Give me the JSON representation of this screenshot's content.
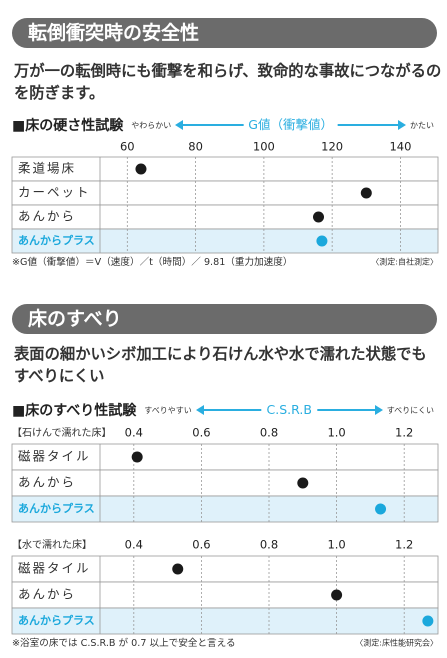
{
  "sections": [
    {
      "heading": "転倒衝突時の安全性",
      "description": "万が一の転倒時にも衝撃を和らげ、致命的な事故につながるのを防ぎます。",
      "test_title": "■床の硬さ性試験",
      "axis_left": "やわらかい",
      "axis_name": "G値（衝撃値）",
      "axis_right": "かたい",
      "charts": [
        {
          "type": "dot",
          "categories": [
            "柔道場床",
            "カーペット",
            "あんから",
            "あんからプラス"
          ],
          "values": [
            64,
            130,
            116,
            117
          ],
          "colors": [
            "#1a1a1a",
            "#1a1a1a",
            "#1a1a1a",
            "#1ba8dc"
          ],
          "row_colors": [
            "#ffffff",
            "#ffffff",
            "#ffffff",
            "#dff1fa"
          ],
          "label_colors": [
            "#333333",
            "#333333",
            "#333333",
            "#1ba8dc"
          ],
          "xlim": [
            52,
            151
          ],
          "xticks": [
            60,
            80,
            100,
            120,
            140
          ],
          "grid": true
        }
      ],
      "footnote": "※G値（衝撃値）＝V（速度）／t（時間）／ 9.81（重力加速度）",
      "source": "〈測定:自社測定〉"
    },
    {
      "heading": "床のすべり",
      "description": "表面の細かいシボ加工により石けん水や水で濡れた状態でもすべりにくい",
      "test_title": "■床のすべり性試験",
      "axis_left": "すべりやすい",
      "axis_name": "C.S.R.B",
      "axis_right": "すべりにくい",
      "charts": [
        {
          "type": "dot",
          "condition": "【石けんで濡れた床】",
          "categories": [
            "磁器タイル",
            "あんから",
            "あんからプラス"
          ],
          "values": [
            0.41,
            0.9,
            1.13
          ],
          "colors": [
            "#1a1a1a",
            "#1a1a1a",
            "#1ba8dc"
          ],
          "row_colors": [
            "#ffffff",
            "#ffffff",
            "#dff1fa"
          ],
          "label_colors": [
            "#333333",
            "#333333",
            "#1ba8dc"
          ],
          "xlim": [
            0.3,
            1.3
          ],
          "xticks": [
            0.4,
            0.6,
            0.8,
            {
              "value": 1,
              "label": "1.0"
            },
            1.2
          ],
          "grid": true
        },
        {
          "type": "dot",
          "condition": "【水で濡れた床】",
          "categories": [
            "磁器タイル",
            "あんから",
            "あんからプラス"
          ],
          "values": [
            0.53,
            1.0,
            1.27
          ],
          "colors": [
            "#1a1a1a",
            "#1a1a1a",
            "#1ba8dc"
          ],
          "row_colors": [
            "#ffffff",
            "#ffffff",
            "#dff1fa"
          ],
          "label_colors": [
            "#333333",
            "#333333",
            "#1ba8dc"
          ],
          "xlim": [
            0.3,
            1.3
          ],
          "xticks": [
            0.4,
            0.6,
            0.8,
            {
              "value": 1,
              "label": "1.0"
            },
            1.2
          ],
          "grid": true
        }
      ],
      "footnote": "※浴室の床では C.S.R.B が 0.7 以上で安全と言える",
      "source": "〈測定:床性能研究会〉"
    }
  ]
}
